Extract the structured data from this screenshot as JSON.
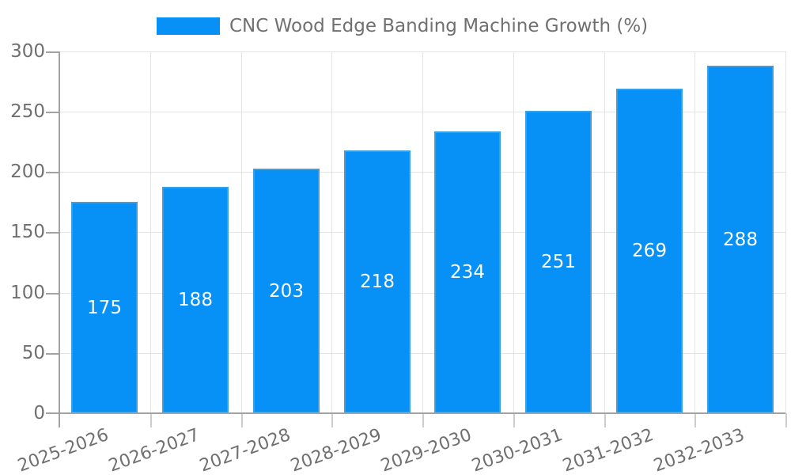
{
  "legend": {
    "label": "CNC Wood Edge Banding Machine Growth (%)"
  },
  "chart_data": {
    "type": "bar",
    "title": "CNC Wood Edge Banding Machine Growth (%)",
    "categories": [
      "2025-2026",
      "2026-2027",
      "2027-2028",
      "2028-2029",
      "2029-2030",
      "2030-2031",
      "2031-2032",
      "2032-2033"
    ],
    "values": [
      175,
      188,
      203,
      218,
      234,
      251,
      269,
      288
    ],
    "xlabel": "",
    "ylabel": "",
    "ylim": [
      0,
      300
    ],
    "yticks": [
      0,
      50,
      100,
      150,
      200,
      250,
      300
    ],
    "grid": true,
    "legend_position": "top",
    "value_labels": "inside-center",
    "colors": {
      "bar_fill": "#0790f5",
      "bar_border": "#3d9fe3",
      "value_label": "#ffffff",
      "axis": "#a2a2a2",
      "grid": "#e5e5e5",
      "xtick_mark": "#cccccc",
      "text": "#707070"
    }
  }
}
